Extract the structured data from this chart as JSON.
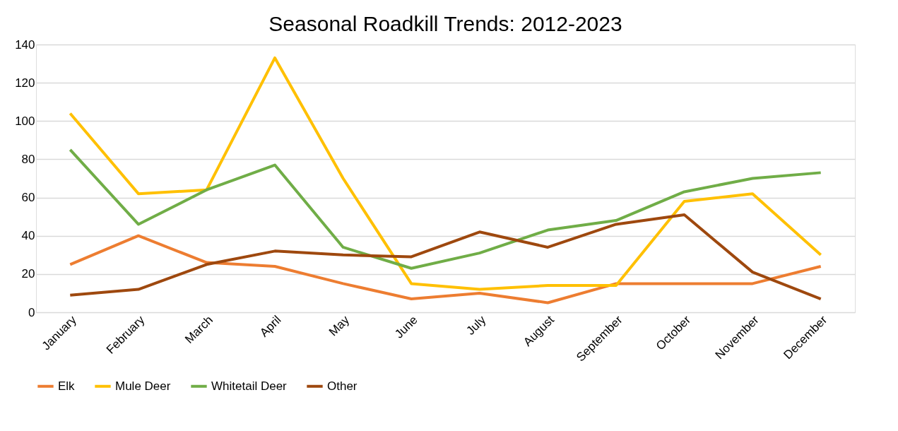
{
  "chart_data": {
    "type": "line",
    "title": "Seasonal Roadkill Trends: 2012-2023",
    "categories": [
      "January",
      "February",
      "March",
      "April",
      "May",
      "June",
      "July",
      "August",
      "September",
      "October",
      "November",
      "December"
    ],
    "series": [
      {
        "name": "Elk",
        "color": "#ed7d31",
        "values": [
          25,
          40,
          26,
          24,
          15,
          7,
          10,
          5,
          15,
          15,
          15,
          24
        ]
      },
      {
        "name": "Mule Deer",
        "color": "#ffc000",
        "values": [
          104,
          62,
          64,
          133,
          70,
          15,
          12,
          14,
          14,
          58,
          62,
          30
        ]
      },
      {
        "name": "Whitetail Deer",
        "color": "#70ad47",
        "values": [
          85,
          46,
          64,
          77,
          34,
          23,
          31,
          43,
          48,
          63,
          70,
          73
        ]
      },
      {
        "name": "Other",
        "color": "#9e480e",
        "values": [
          9,
          12,
          25,
          32,
          30,
          29,
          42,
          34,
          46,
          51,
          21,
          7
        ]
      }
    ],
    "ylim": [
      0,
      140
    ],
    "yticks": [
      0,
      20,
      40,
      60,
      80,
      100,
      120,
      140
    ],
    "grid": "y",
    "legend": "bottom",
    "marker": "none",
    "line_style": "solid"
  }
}
